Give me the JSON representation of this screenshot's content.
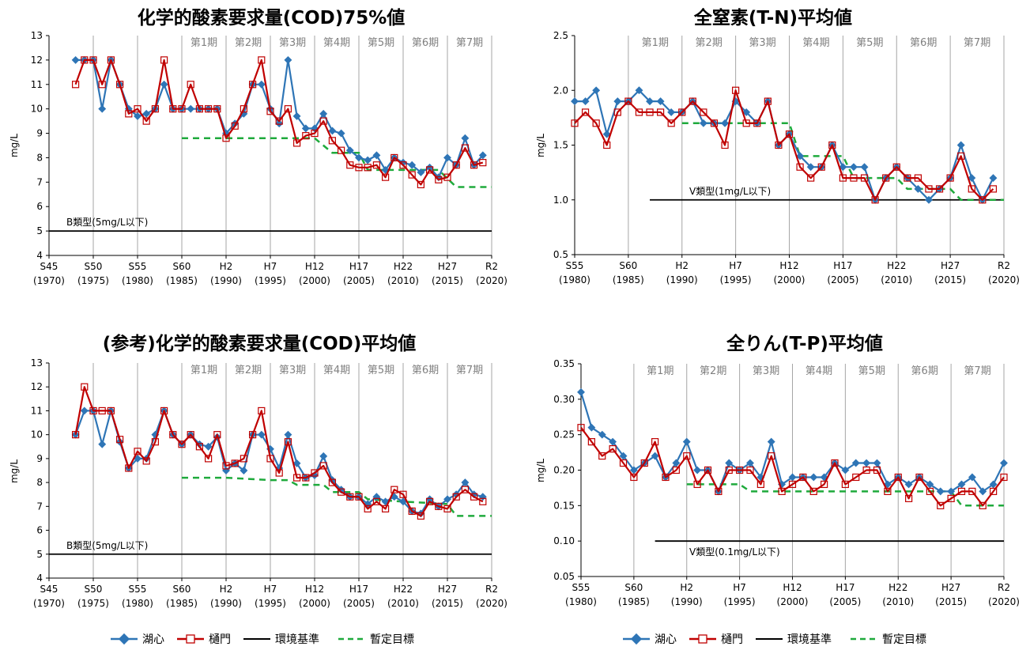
{
  "colors": {
    "lake_center": "#2e75b6",
    "gate": "#c00000",
    "standard": "#000000",
    "target": "#1faa3c",
    "period_line": "#a6a6a6"
  },
  "legend": {
    "lake_center": "湖心",
    "gate": "樋門",
    "standard": "環境基準",
    "target": "暫定目標"
  },
  "chart_data": [
    {
      "type": "line",
      "title": "化学的酸素要求量(COD)75%値",
      "ylabel": "mg/L",
      "xlim": [
        1970,
        2020
      ],
      "ylim": [
        4,
        13
      ],
      "yticks": [
        "4",
        "5",
        "6",
        "7",
        "8",
        "9",
        "10",
        "11",
        "12",
        "13"
      ],
      "xticks": [
        {
          "year": 1970,
          "era": "S45",
          "ad": "(1970)"
        },
        {
          "year": 1975,
          "era": "S50",
          "ad": "(1975)"
        },
        {
          "year": 1980,
          "era": "S55",
          "ad": "(1980)"
        },
        {
          "year": 1985,
          "era": "S60",
          "ad": "(1985)"
        },
        {
          "year": 1990,
          "era": "H2",
          "ad": "(1990)"
        },
        {
          "year": 1995,
          "era": "H7",
          "ad": "(1995)"
        },
        {
          "year": 2000,
          "era": "H12",
          "ad": "(2000)"
        },
        {
          "year": 2005,
          "era": "H17",
          "ad": "(2005)"
        },
        {
          "year": 2010,
          "era": "H22",
          "ad": "(2010)"
        },
        {
          "year": 2015,
          "era": "H27",
          "ad": "(2015)"
        },
        {
          "year": 2020,
          "era": "R2",
          "ad": "(2020)"
        }
      ],
      "period_lines": [
        1975,
        1980,
        1985,
        1990,
        1995,
        2000,
        2005,
        2010,
        2015,
        2020
      ],
      "periods": [
        {
          "label": "第1期",
          "from": 1985,
          "to": 1990
        },
        {
          "label": "第2期",
          "from": 1990,
          "to": 1995
        },
        {
          "label": "第3期",
          "from": 1995,
          "to": 2000
        },
        {
          "label": "第4期",
          "from": 2000,
          "to": 2005
        },
        {
          "label": "第5期",
          "from": 2005,
          "to": 2010
        },
        {
          "label": "第6期",
          "from": 2010,
          "to": 2015
        },
        {
          "label": "第7期",
          "from": 2015,
          "to": 2020
        }
      ],
      "standard": {
        "label": "B類型(5mg/L以下)",
        "value": 5,
        "from": 1970,
        "to": 2020
      },
      "series": [
        {
          "name": "湖心",
          "x_start": 1973,
          "values": [
            12,
            12,
            12,
            10,
            12,
            11,
            10,
            9.7,
            9.8,
            10,
            11,
            10,
            10,
            10,
            10,
            10,
            10,
            9,
            9.4,
            9.8,
            11,
            11,
            10,
            9.4,
            12,
            9.7,
            9.2,
            9.2,
            9.8,
            9.1,
            9,
            8.3,
            8,
            7.9,
            8.1,
            7.5,
            8,
            7.8,
            7.7,
            7.4,
            7.6,
            7.2,
            8,
            7.7,
            8.8,
            7.7,
            8.1
          ]
        },
        {
          "name": "樋門",
          "x_start": 1973,
          "values": [
            11,
            12,
            12,
            11,
            12,
            11,
            9.8,
            10,
            9.5,
            10,
            12,
            10,
            10,
            11,
            10,
            10,
            10,
            8.8,
            9.3,
            10,
            11,
            12,
            9.9,
            9.5,
            10,
            8.6,
            8.9,
            9,
            9.5,
            8.7,
            8.3,
            7.7,
            7.6,
            7.6,
            7.7,
            7.2,
            8,
            7.7,
            7.3,
            6.9,
            7.5,
            7.1,
            7.2,
            7.7,
            8.4,
            7.7,
            7.8
          ]
        }
      ],
      "target": [
        [
          1985,
          8.8
        ],
        [
          2000,
          8.8
        ],
        [
          2002,
          8.2
        ],
        [
          2005,
          8.2
        ],
        [
          2006,
          7.5
        ],
        [
          2010,
          7.5
        ],
        [
          2014,
          7.5
        ],
        [
          2016,
          6.8
        ],
        [
          2020,
          6.8
        ]
      ]
    },
    {
      "type": "line",
      "title": "全窒素(T-N)平均値",
      "ylabel": "mg/L",
      "xlim": [
        1980,
        2020
      ],
      "ylim": [
        0.5,
        2.5
      ],
      "yticks": [
        "0.5",
        "1.0",
        "1.5",
        "2.0",
        "2.5"
      ],
      "xticks": [
        {
          "year": 1980,
          "era": "S55",
          "ad": "(1980)"
        },
        {
          "year": 1985,
          "era": "S60",
          "ad": "(1985)"
        },
        {
          "year": 1990,
          "era": "H2",
          "ad": "(1990)"
        },
        {
          "year": 1995,
          "era": "H7",
          "ad": "(1995)"
        },
        {
          "year": 2000,
          "era": "H12",
          "ad": "(2000)"
        },
        {
          "year": 2005,
          "era": "H17",
          "ad": "(2005)"
        },
        {
          "year": 2010,
          "era": "H22",
          "ad": "(2010)"
        },
        {
          "year": 2015,
          "era": "H27",
          "ad": "(2015)"
        },
        {
          "year": 2020,
          "era": "R2",
          "ad": "(2020)"
        }
      ],
      "period_lines": [
        1985,
        1990,
        1995,
        2000,
        2005,
        2010,
        2015,
        2020
      ],
      "periods": [
        {
          "label": "第1期",
          "from": 1985,
          "to": 1990
        },
        {
          "label": "第2期",
          "from": 1990,
          "to": 1995
        },
        {
          "label": "第3期",
          "from": 1995,
          "to": 2000
        },
        {
          "label": "第4期",
          "from": 2000,
          "to": 2005
        },
        {
          "label": "第5期",
          "from": 2005,
          "to": 2010
        },
        {
          "label": "第6期",
          "from": 2010,
          "to": 2015
        },
        {
          "label": "第7期",
          "from": 2015,
          "to": 2020
        }
      ],
      "standard": {
        "label": "V類型(1mg/L以下)",
        "value": 1.0,
        "from": 1987,
        "to": 2020
      },
      "series": [
        {
          "name": "湖心",
          "x_start": 1980,
          "values": [
            1.9,
            1.9,
            2,
            1.6,
            1.9,
            1.9,
            2,
            1.9,
            1.9,
            1.8,
            1.8,
            1.9,
            1.7,
            1.7,
            1.7,
            1.9,
            1.8,
            1.7,
            1.9,
            1.5,
            1.6,
            1.4,
            1.3,
            1.3,
            1.5,
            1.3,
            1.3,
            1.3,
            1,
            1.2,
            1.3,
            1.2,
            1.1,
            1,
            1.1,
            1.2,
            1.5,
            1.2,
            1,
            1.2
          ]
        },
        {
          "name": "樋門",
          "x_start": 1980,
          "values": [
            1.7,
            1.8,
            1.7,
            1.5,
            1.8,
            1.9,
            1.8,
            1.8,
            1.8,
            1.7,
            1.8,
            1.9,
            1.8,
            1.7,
            1.5,
            2,
            1.7,
            1.7,
            1.9,
            1.5,
            1.6,
            1.3,
            1.2,
            1.3,
            1.5,
            1.2,
            1.2,
            1.2,
            1,
            1.2,
            1.3,
            1.2,
            1.2,
            1.1,
            1.1,
            1.2,
            1.4,
            1.1,
            1,
            1.1
          ]
        }
      ],
      "target": [
        [
          1990,
          1.7
        ],
        [
          2000,
          1.7
        ],
        [
          2001,
          1.4
        ],
        [
          2005,
          1.4
        ],
        [
          2006,
          1.2
        ],
        [
          2010,
          1.2
        ],
        [
          2011,
          1.1
        ],
        [
          2015,
          1.1
        ],
        [
          2016,
          1.0
        ],
        [
          2020,
          1.0
        ]
      ]
    },
    {
      "type": "line",
      "title": "(参考)化学的酸素要求量(COD)平均値",
      "ylabel": "mg/L",
      "xlim": [
        1970,
        2020
      ],
      "ylim": [
        4,
        13
      ],
      "yticks": [
        "4",
        "5",
        "6",
        "7",
        "8",
        "9",
        "10",
        "11",
        "12",
        "13"
      ],
      "xticks": [
        {
          "year": 1970,
          "era": "S45",
          "ad": "(1970)"
        },
        {
          "year": 1975,
          "era": "S50",
          "ad": "(1975)"
        },
        {
          "year": 1980,
          "era": "S55",
          "ad": "(1980)"
        },
        {
          "year": 1985,
          "era": "S60",
          "ad": "(1985)"
        },
        {
          "year": 1990,
          "era": "H2",
          "ad": "(1990)"
        },
        {
          "year": 1995,
          "era": "H7",
          "ad": "(1995)"
        },
        {
          "year": 2000,
          "era": "H12",
          "ad": "(2000)"
        },
        {
          "year": 2005,
          "era": "H17",
          "ad": "(2005)"
        },
        {
          "year": 2010,
          "era": "H22",
          "ad": "(2010)"
        },
        {
          "year": 2015,
          "era": "H27",
          "ad": "(2015)"
        },
        {
          "year": 2020,
          "era": "R2",
          "ad": "(2020)"
        }
      ],
      "period_lines": [
        1975,
        1980,
        1985,
        1990,
        1995,
        2000,
        2005,
        2010,
        2015,
        2020
      ],
      "periods": [
        {
          "label": "第1期",
          "from": 1985,
          "to": 1990
        },
        {
          "label": "第2期",
          "from": 1990,
          "to": 1995
        },
        {
          "label": "第3期",
          "from": 1995,
          "to": 2000
        },
        {
          "label": "第4期",
          "from": 2000,
          "to": 2005
        },
        {
          "label": "第5期",
          "from": 2005,
          "to": 2010
        },
        {
          "label": "第6期",
          "from": 2010,
          "to": 2015
        },
        {
          "label": "第7期",
          "from": 2015,
          "to": 2020
        }
      ],
      "standard": {
        "label": "B類型(5mg/L以下)",
        "value": 5,
        "from": 1970,
        "to": 2020
      },
      "series": [
        {
          "name": "湖心",
          "x_start": 1973,
          "values": [
            10,
            11,
            11,
            9.6,
            11,
            9.7,
            8.6,
            9,
            9,
            10,
            11,
            10,
            9.6,
            10,
            9.6,
            9.5,
            9.9,
            8.5,
            8.8,
            8.5,
            10,
            10,
            9.4,
            8.6,
            10,
            8.8,
            8.2,
            8.3,
            9.1,
            8.1,
            7.7,
            7.4,
            7.4,
            7.1,
            7.4,
            7.2,
            7.4,
            7.2,
            6.8,
            6.7,
            7.3,
            7,
            7.3,
            7.5,
            8,
            7.5,
            7.4
          ]
        },
        {
          "name": "樋門",
          "x_start": 1973,
          "values": [
            10,
            12,
            11,
            11,
            11,
            9.8,
            8.6,
            9.3,
            8.9,
            9.7,
            11,
            10,
            9.6,
            10,
            9.5,
            9,
            10,
            8.7,
            8.8,
            9,
            10,
            11,
            9,
            8.4,
            9.7,
            8.2,
            8.2,
            8.4,
            8.7,
            8,
            7.6,
            7.4,
            7.4,
            6.9,
            7.2,
            6.9,
            7.7,
            7.5,
            6.8,
            6.6,
            7.2,
            7,
            6.9,
            7.4,
            7.7,
            7.4,
            7.2
          ]
        }
      ],
      "target": [
        [
          1985,
          8.2
        ],
        [
          1990,
          8.2
        ],
        [
          1995,
          8.1
        ],
        [
          1997,
          8.1
        ],
        [
          1998,
          7.9
        ],
        [
          2001,
          7.9
        ],
        [
          2002,
          7.6
        ],
        [
          2005,
          7.6
        ],
        [
          2006,
          7.3
        ],
        [
          2010,
          7.2
        ],
        [
          2015,
          7.1
        ],
        [
          2016,
          6.6
        ],
        [
          2020,
          6.6
        ]
      ]
    },
    {
      "type": "line",
      "title": "全りん(T-P)平均値",
      "ylabel": "mg/L",
      "xlim": [
        1980,
        2020
      ],
      "ylim": [
        0.05,
        0.35
      ],
      "yticks": [
        "0.05",
        "0.10",
        "0.15",
        "0.20",
        "0.25",
        "0.30",
        "0.35"
      ],
      "xticks": [
        {
          "year": 1980,
          "era": "S55",
          "ad": "(1980)"
        },
        {
          "year": 1985,
          "era": "S60",
          "ad": "(1985)"
        },
        {
          "year": 1990,
          "era": "H2",
          "ad": "(1990)"
        },
        {
          "year": 1995,
          "era": "H7",
          "ad": "(1995)"
        },
        {
          "year": 2000,
          "era": "H12",
          "ad": "(2000)"
        },
        {
          "year": 2005,
          "era": "H17",
          "ad": "(2005)"
        },
        {
          "year": 2010,
          "era": "H22",
          "ad": "(2010)"
        },
        {
          "year": 2015,
          "era": "H27",
          "ad": "(2015)"
        },
        {
          "year": 2020,
          "era": "R2",
          "ad": "(2020)"
        }
      ],
      "period_lines": [
        1985,
        1990,
        1995,
        2000,
        2005,
        2010,
        2015,
        2020
      ],
      "periods": [
        {
          "label": "第1期",
          "from": 1985,
          "to": 1990
        },
        {
          "label": "第2期",
          "from": 1990,
          "to": 1995
        },
        {
          "label": "第3期",
          "from": 1995,
          "to": 2000
        },
        {
          "label": "第4期",
          "from": 2000,
          "to": 2005
        },
        {
          "label": "第5期",
          "from": 2005,
          "to": 2010
        },
        {
          "label": "第6期",
          "from": 2010,
          "to": 2015
        },
        {
          "label": "第7期",
          "from": 2015,
          "to": 2020
        }
      ],
      "standard": {
        "label": "V類型(0.1mg/L以下)",
        "value": 0.1,
        "from": 1987,
        "to": 2020
      },
      "series": [
        {
          "name": "湖心",
          "x_start": 1980,
          "values": [
            0.31,
            0.26,
            0.25,
            0.24,
            0.22,
            0.2,
            0.21,
            0.22,
            0.19,
            0.21,
            0.24,
            0.2,
            0.2,
            0.17,
            0.21,
            0.2,
            0.21,
            0.19,
            0.24,
            0.18,
            0.19,
            0.19,
            0.19,
            0.19,
            0.21,
            0.2,
            0.21,
            0.21,
            0.21,
            0.18,
            0.19,
            0.18,
            0.19,
            0.18,
            0.17,
            0.17,
            0.18,
            0.19,
            0.17,
            0.18,
            0.21
          ]
        },
        {
          "name": "樋門",
          "x_start": 1980,
          "values": [
            0.26,
            0.24,
            0.22,
            0.23,
            0.21,
            0.19,
            0.21,
            0.24,
            0.19,
            0.2,
            0.22,
            0.18,
            0.2,
            0.17,
            0.2,
            0.2,
            0.2,
            0.18,
            0.22,
            0.17,
            0.18,
            0.19,
            0.17,
            0.18,
            0.21,
            0.18,
            0.19,
            0.2,
            0.2,
            0.17,
            0.19,
            0.16,
            0.19,
            0.17,
            0.15,
            0.16,
            0.17,
            0.17,
            0.15,
            0.17,
            0.19
          ]
        }
      ],
      "target": [
        [
          1990,
          0.18
        ],
        [
          1995,
          0.18
        ],
        [
          1996,
          0.17
        ],
        [
          2015,
          0.17
        ],
        [
          2016,
          0.15
        ],
        [
          2020,
          0.15
        ]
      ]
    }
  ]
}
